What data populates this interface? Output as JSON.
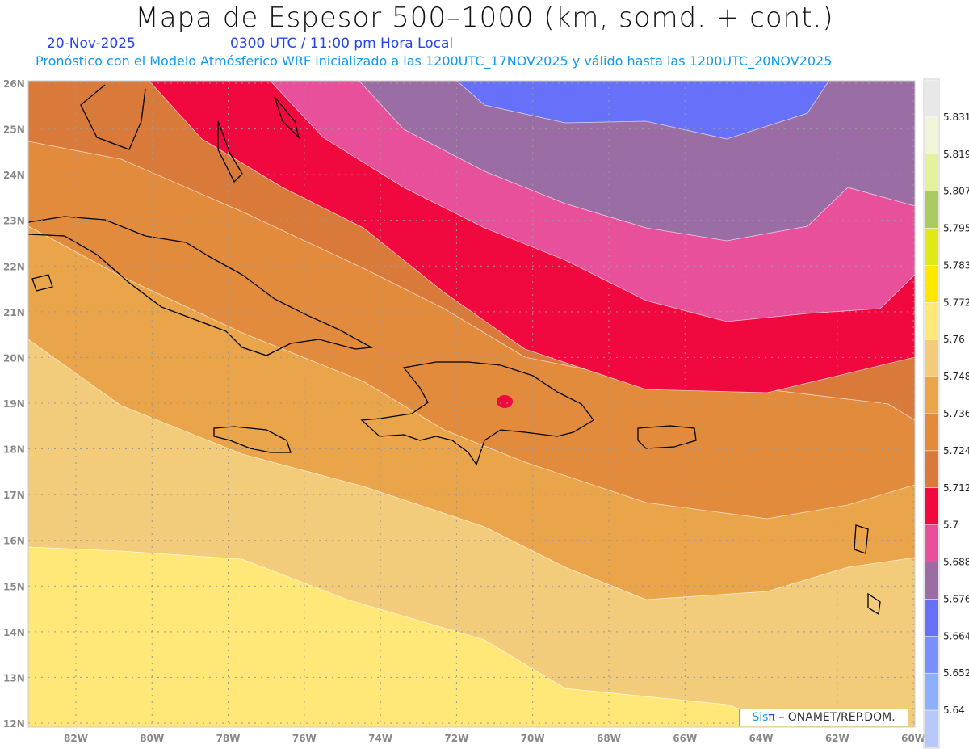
{
  "header": {
    "title": "Mapa de Espesor 500–1000 (km, somd. + cont.)",
    "date": "20-Nov-2025",
    "time": "0300 UTC / 11:00 pm Hora Local",
    "subtitle": "Pronóstico con el Modelo Atmósferico WRF inicializado a las 1200UTC_17NOV2025 y válido hasta las  1200UTC_20NOV2025"
  },
  "axes": {
    "lat_labels": [
      "26N",
      "25N",
      "24N",
      "23N",
      "22N",
      "21N",
      "20N",
      "19N",
      "18N",
      "17N",
      "16N",
      "15N",
      "14N",
      "13N",
      "12N"
    ],
    "lon_labels": [
      "82W",
      "80W",
      "78W",
      "76W",
      "74W",
      "72W",
      "70W",
      "68W",
      "66W",
      "64W",
      "62W",
      "60W"
    ]
  },
  "legend": {
    "colors": [
      "#e8e8e8",
      "#f0f5d8",
      "#e4f29c",
      "#a9cb60",
      "#e0e818",
      "#ffe800",
      "#ffe878",
      "#f2cc7a",
      "#eaa54a",
      "#e38b3c",
      "#d97a3a",
      "#f0083f",
      "#e8509c",
      "#9a6ea4",
      "#6670f8",
      "#7890fa",
      "#8cb0fa",
      "#b8c8fa"
    ],
    "labels": [
      "5.831",
      "5.819",
      "5.807",
      "5.795",
      "5.783",
      "5.772",
      "5.76",
      "5.748",
      "5.736",
      "5.724",
      "5.712",
      "5.7",
      "5.688",
      "5.676",
      "5.664",
      "5.652",
      "5.64"
    ]
  },
  "credit": {
    "sis": "Sis",
    "pi": "π",
    "rest": "– ONAMET/REP.DOM."
  }
}
